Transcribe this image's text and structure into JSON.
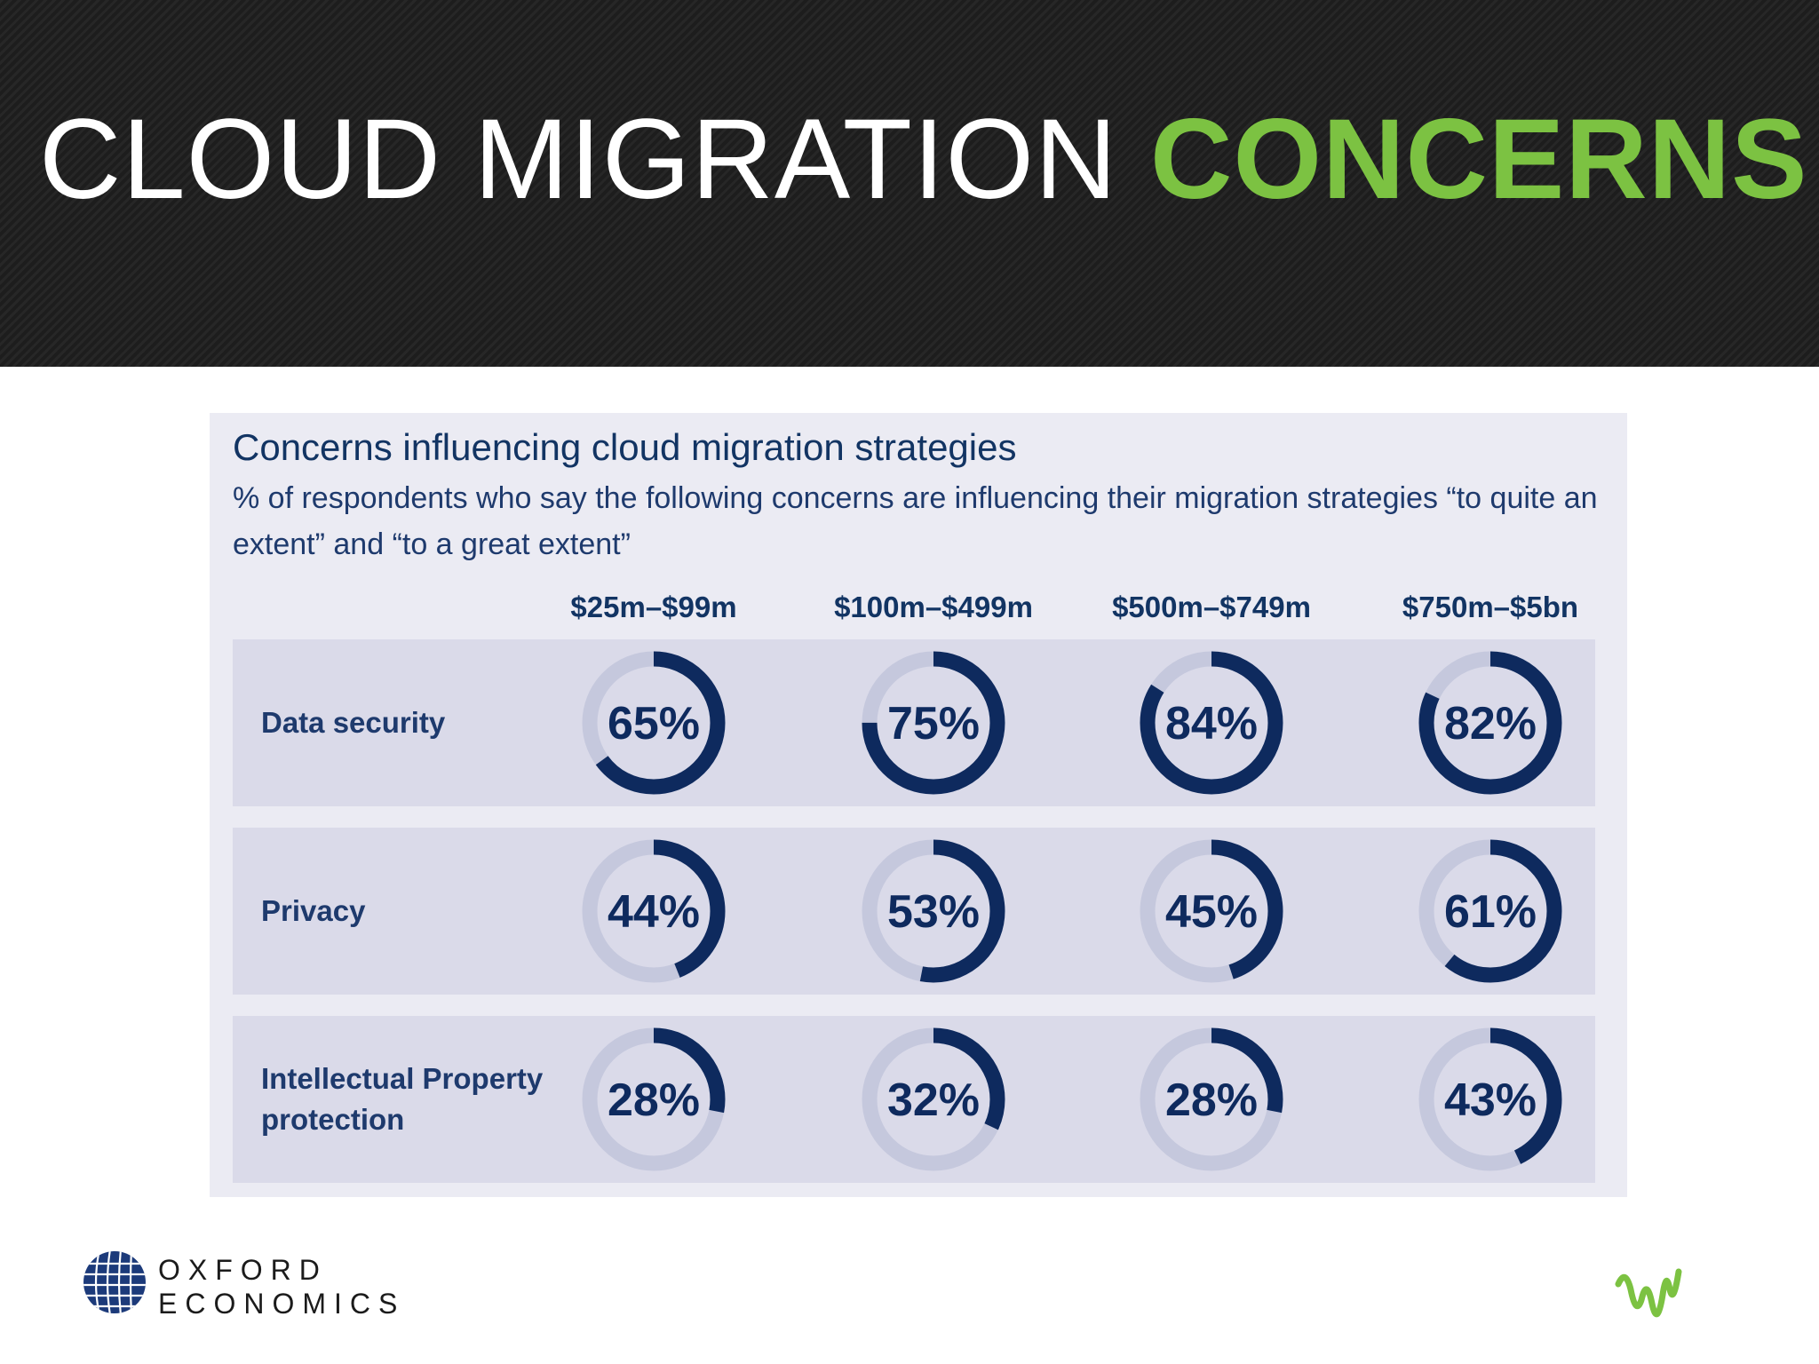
{
  "header": {
    "title_part1": "CLOUD MIGRATION ",
    "title_part2": "CONCERNS",
    "background_color": "#1d1d1d",
    "title_color": "#ffffff",
    "accent_color": "#7cc242"
  },
  "chart_data": {
    "type": "donut-grid",
    "title": "Concerns influencing cloud migration strategies",
    "subtitle": "% of respondents who say the following concerns are influencing their migration strategies “to quite an extent” and “to a great extent”",
    "categories": [
      "$25m–$99m",
      "$100m–$499m",
      "$500m–$749m",
      "$750m–$5bn"
    ],
    "series": [
      {
        "name": "Data security",
        "values": [
          65,
          75,
          84,
          82
        ]
      },
      {
        "name": "Privacy",
        "values": [
          44,
          53,
          45,
          61
        ]
      },
      {
        "name": "Intellectual Property protection",
        "values": [
          28,
          32,
          28,
          43
        ]
      }
    ],
    "value_suffix": "%",
    "colors": {
      "panel": "#ebebf3",
      "row_band": "#dadae9",
      "ring_filled": "#0e2a5e",
      "ring_track": "#c5c8dd"
    }
  },
  "footer": {
    "logo_text": "OXFORD\nECONOMICS",
    "logo_icon": "globe-grid-icon",
    "brand_icon": "green-wave-icon"
  }
}
